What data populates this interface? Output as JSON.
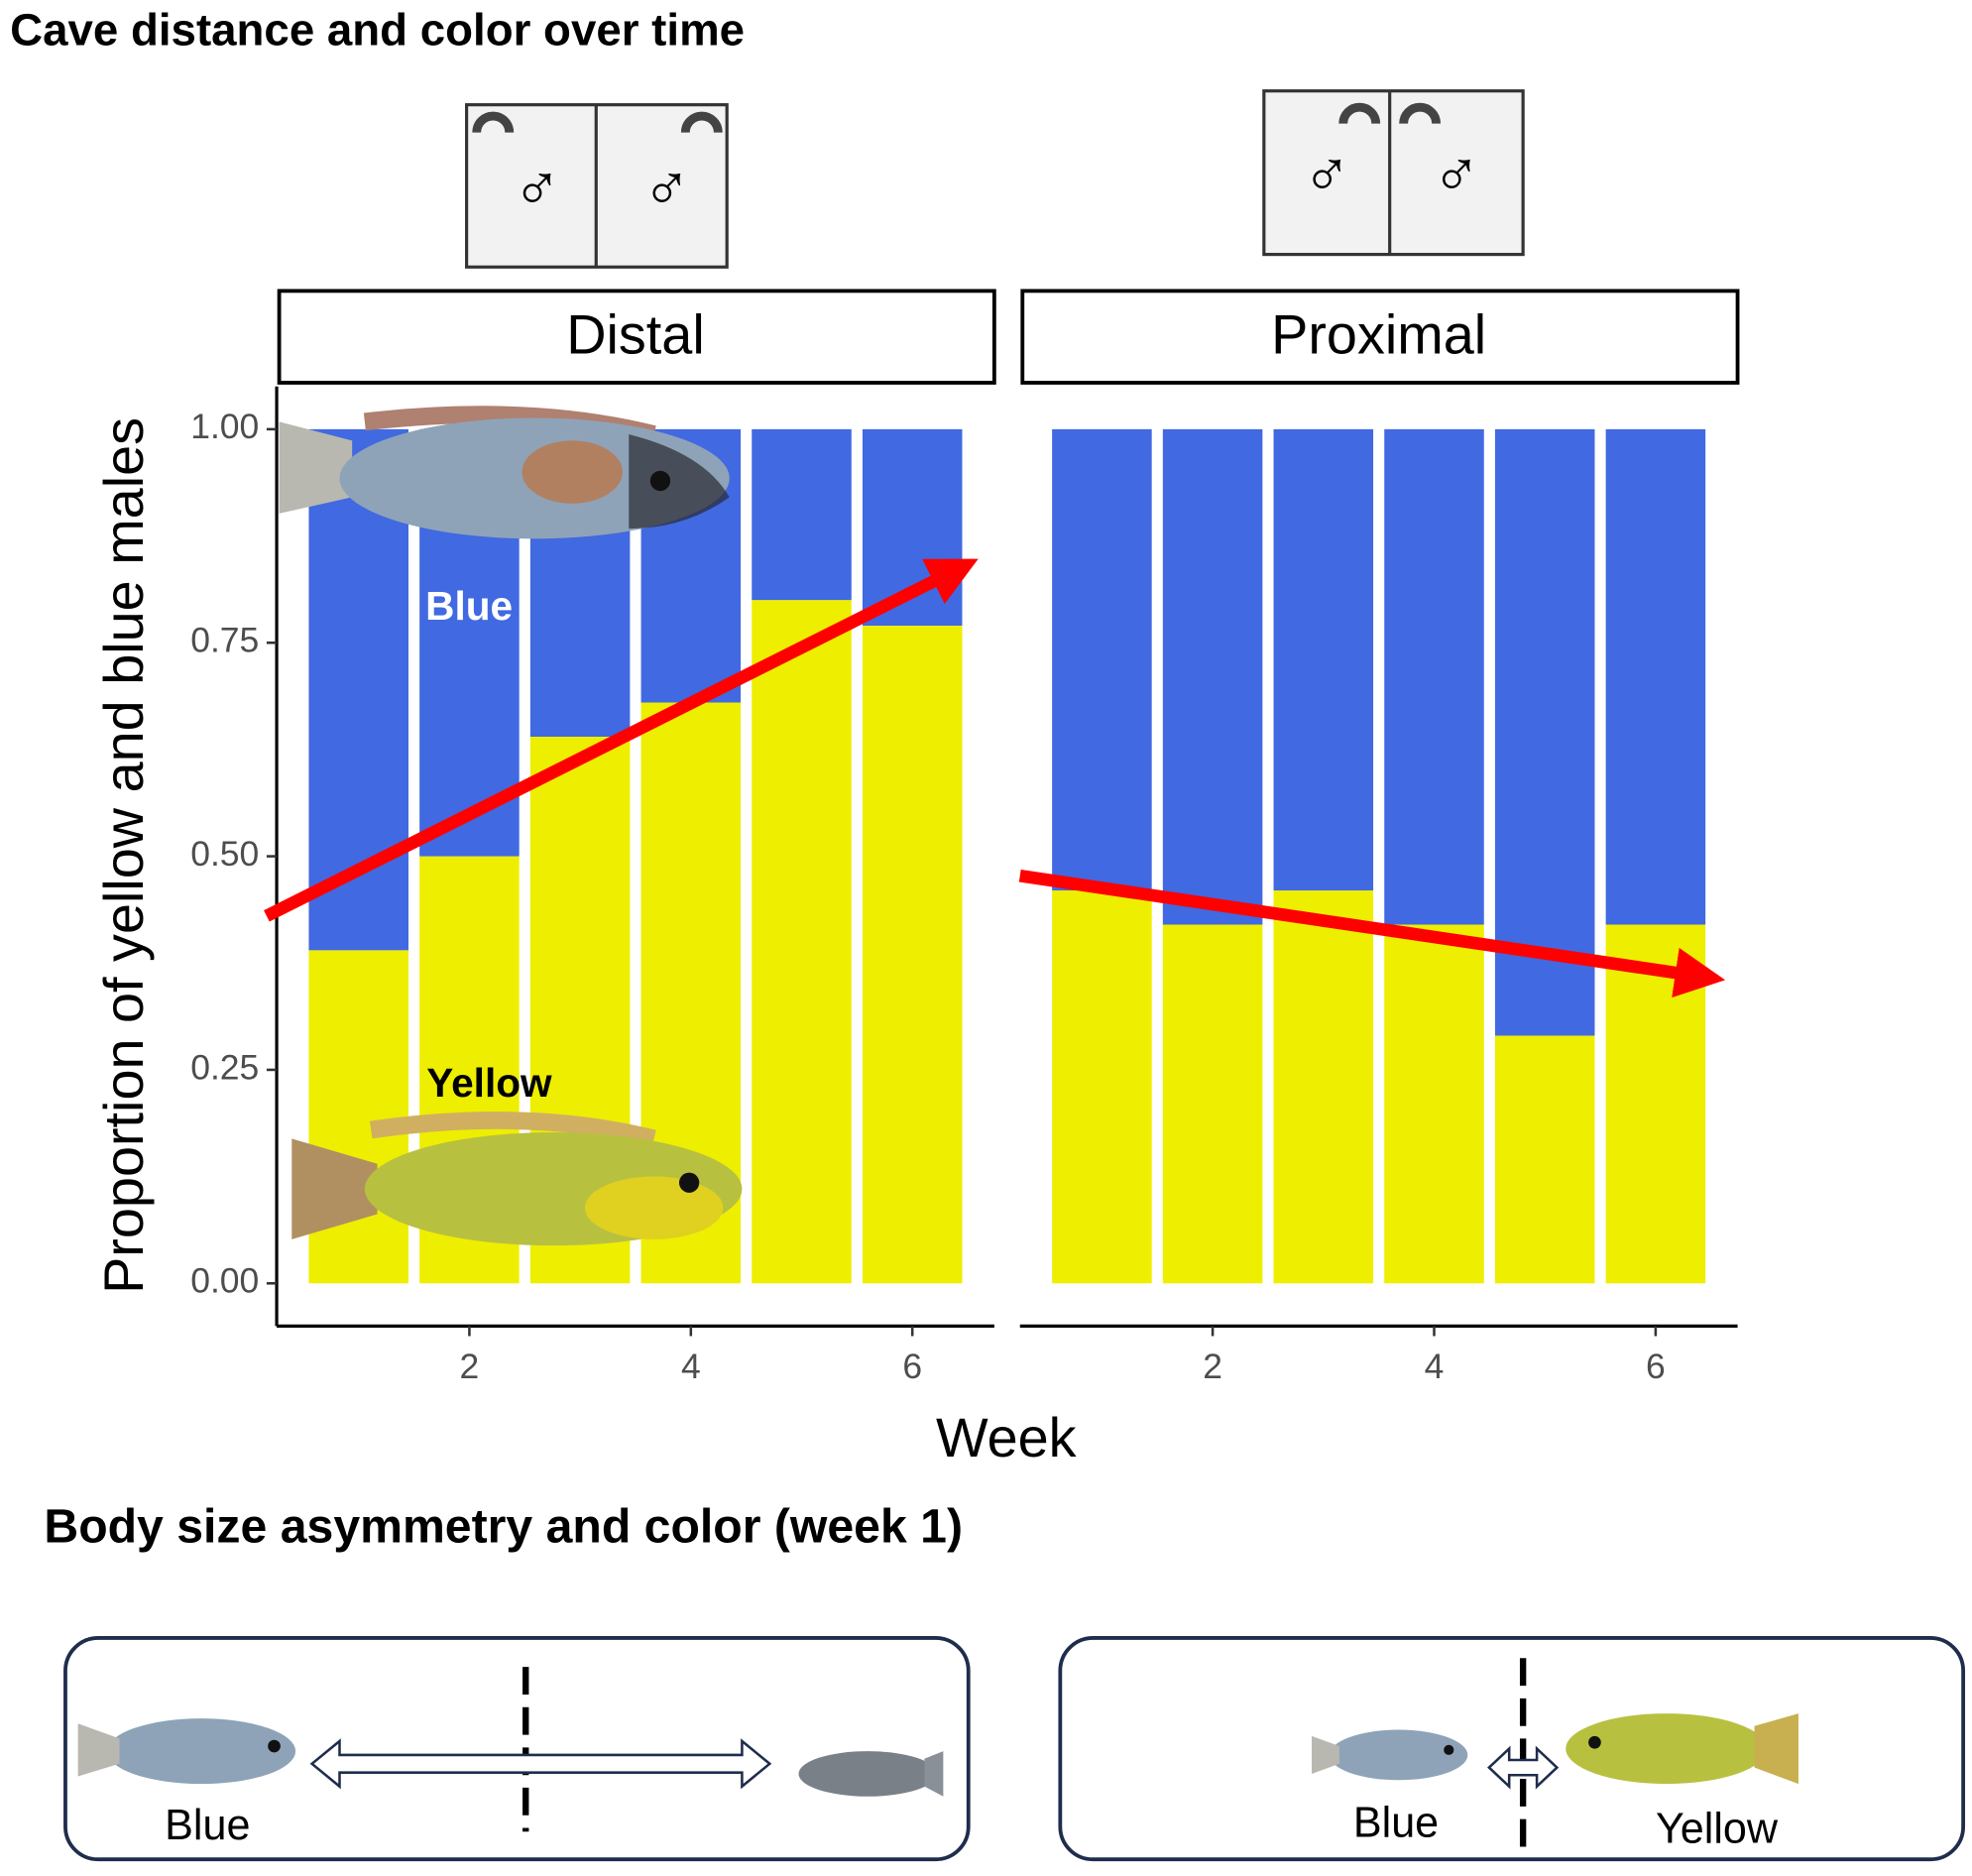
{
  "title": "Cave distance and color over time",
  "y_label": "Proportion of yellow and blue males",
  "x_label": "Week",
  "chart_data": [
    {
      "type": "bar",
      "stacked": true,
      "facet": "Distal",
      "x": [
        1,
        2,
        3,
        4,
        5,
        6
      ],
      "xlim": [
        0.26,
        6.74
      ],
      "xticks": [
        2,
        4,
        6
      ],
      "ylim": [
        -0.05,
        1.05
      ],
      "yticks": [
        {
          "value": 0,
          "label": "0.00"
        },
        {
          "value": 0.25,
          "label": "0.25"
        },
        {
          "value": 0.5,
          "label": "0.50"
        },
        {
          "value": 0.75,
          "label": "0.75"
        },
        {
          "value": 1,
          "label": "1.00"
        }
      ],
      "series": [
        {
          "name": "Yellow",
          "color": "#eeee00",
          "values": [
            0.39,
            0.5,
            0.64,
            0.68,
            0.8,
            0.77
          ]
        },
        {
          "name": "Blue",
          "color": "#4169e1",
          "values": [
            0.61,
            0.5,
            0.36,
            0.32,
            0.2,
            0.23
          ]
        }
      ]
    },
    {
      "type": "bar",
      "stacked": true,
      "facet": "Proximal",
      "x": [
        1,
        2,
        3,
        4,
        5,
        6
      ],
      "xlim": [
        0.26,
        6.74
      ],
      "xticks": [
        2,
        4,
        6
      ],
      "ylim": [
        -0.05,
        1.05
      ],
      "series": [
        {
          "color": "#eeee00",
          "values": [
            0.46,
            0.42,
            0.46,
            0.42,
            0.29,
            0.42
          ]
        },
        {
          "color": "#4169e1",
          "values": [
            0.54,
            0.58,
            0.54,
            0.58,
            0.71,
            0.58
          ]
        }
      ]
    }
  ],
  "cages": [
    {
      "symbols": [
        "♂",
        "♂"
      ]
    },
    {
      "symbols": [
        "♂",
        "♂"
      ]
    }
  ],
  "body_size": {
    "title": "Body size asymmetry and color (week 1)",
    "panels": [
      {
        "labels": [
          "Blue"
        ]
      },
      {
        "labels": [
          "Blue",
          "Yellow"
        ]
      }
    ]
  }
}
